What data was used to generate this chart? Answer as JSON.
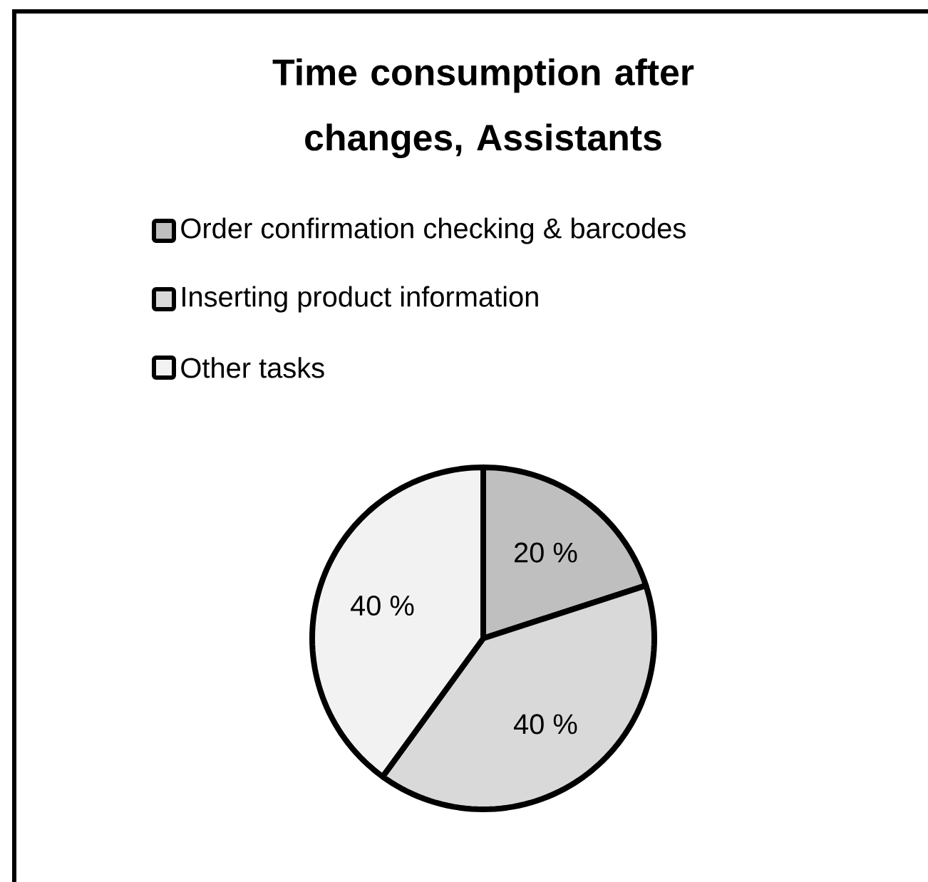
{
  "chart_data": {
    "type": "pie",
    "title": "Time consumption after changes, Assistants",
    "categories": [
      "Order confirmation checking & barcodes",
      "Inserting product information",
      "Other tasks"
    ],
    "values": [
      20,
      40,
      40
    ],
    "colors": [
      "#bfbfbf",
      "#d9d9d9",
      "#f2f2f2"
    ],
    "value_labels": [
      "20 %",
      "40 %",
      "40 %"
    ],
    "legend": "top"
  }
}
